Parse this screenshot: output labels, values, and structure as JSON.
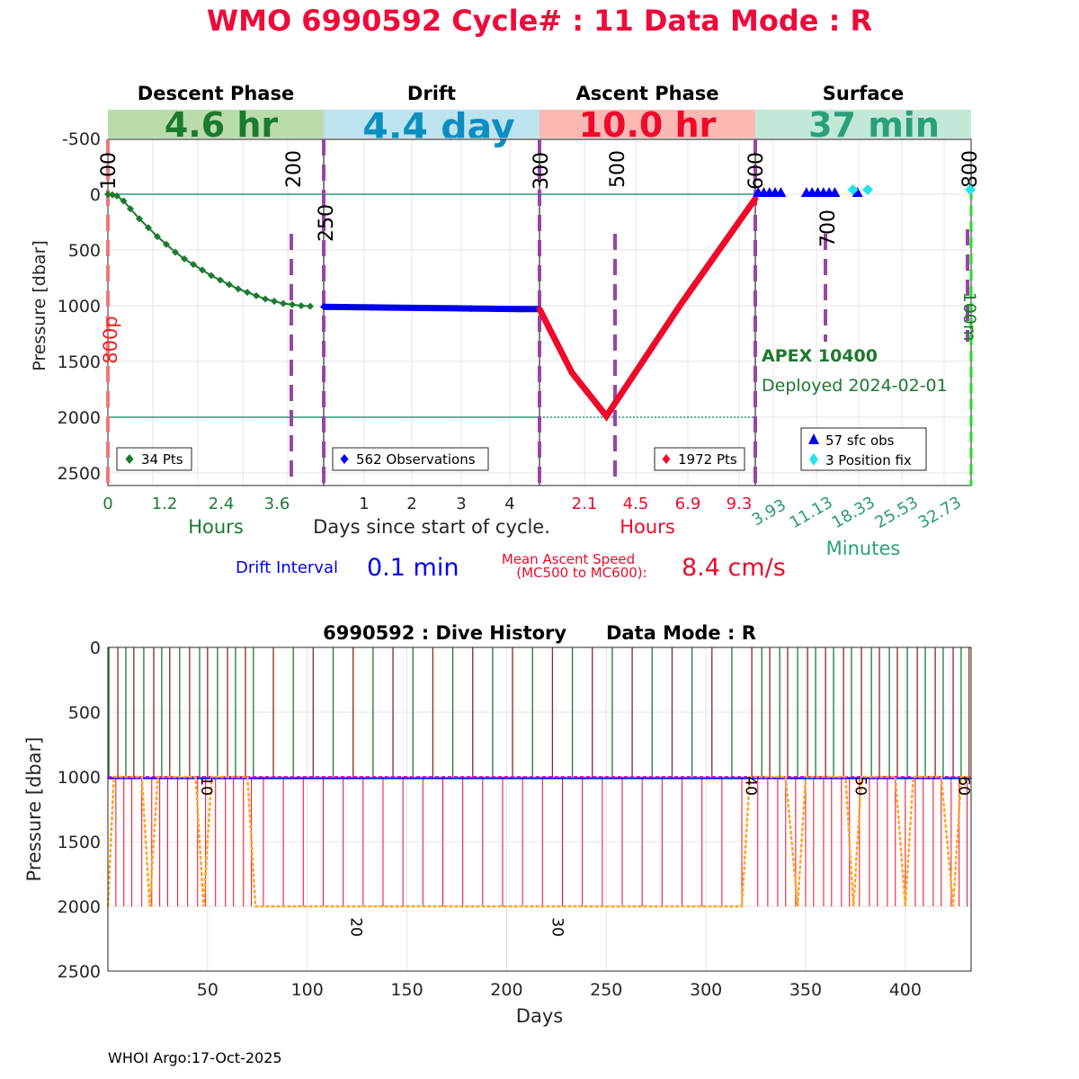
{
  "title": "WMO 6990592   Cycle# : 11   Data Mode : R",
  "footer": "WHOI Argo:17-Oct-2025",
  "colors": {
    "title": "#ee0a3a",
    "descent": "#1b7a2e",
    "drift": "#0000ee",
    "ascent": "#ee0a2a",
    "surface": "#2a9a78",
    "marker_line": "#9944aa",
    "ref_line": "#2a9a78",
    "profile_line": "#ffa520",
    "park_line": "#ee00ee",
    "descent_bar": "#b9dcaa",
    "drift_bar": "#bde3ef",
    "ascent_bar": "#fbb8b3",
    "surface_bar": "#c2e9d7",
    "drift_text": "#0c8ec0",
    "surface_text": "#2aa07a"
  },
  "phases": [
    {
      "name": "Descent Phase",
      "duration": "4.6 hr"
    },
    {
      "name": "Drift",
      "duration": "4.4 day"
    },
    {
      "name": "Ascent Phase",
      "duration": "10.0 hr"
    },
    {
      "name": "Surface",
      "duration": "37 min"
    }
  ],
  "top_chart": {
    "ylabel": "Pressure [dbar]",
    "y_ticks": [
      "-500",
      "0",
      "500",
      "1000",
      "1500",
      "2000",
      "2500"
    ],
    "descent_ticks": [
      "0",
      "1.2",
      "2.4",
      "3.6"
    ],
    "descent_unit": "Hours",
    "drift_ticks": [
      "1",
      "2",
      "3",
      "4"
    ],
    "drift_unit": "Days since start of cycle.",
    "ascent_ticks": [
      "2.1",
      "4.5",
      "6.9",
      "9.3"
    ],
    "ascent_unit": "Hours",
    "surface_ticks": [
      "3.93",
      "11.13",
      "18.33",
      "25.53",
      "32.73"
    ],
    "surface_unit": "Minutes",
    "marker_labels": [
      "100",
      "200",
      "250",
      "300",
      "500",
      "600",
      "700",
      "800"
    ],
    "label_800p": "800p",
    "label_100m": "100m",
    "legends": {
      "descent": "34 Pts",
      "drift": "562 Observations",
      "ascent": "1972 Pts",
      "surface_obs": "57 sfc obs",
      "surface_fix": "3 Position fix"
    },
    "float_model": "APEX 10400",
    "deployed": "Deployed 2024-02-01"
  },
  "chart_data": [
    {
      "type": "scatter",
      "title": "WMO 6990592   Cycle# : 11   Data Mode : R",
      "ylabel": "Pressure [dbar]",
      "ylim": [
        -500,
        2600
      ],
      "y_reversed": true,
      "series": [
        {
          "name": "34 Pts",
          "x_unit": "hours",
          "x": [
            0,
            0.1,
            0.2,
            0.35,
            0.5,
            0.7,
            0.9,
            1.1,
            1.3,
            1.5,
            1.7,
            1.9,
            2.1,
            2.3,
            2.5,
            2.7,
            2.9,
            3.1,
            3.3,
            3.5,
            3.7,
            3.9,
            4.1,
            4.3,
            4.5
          ],
          "y": [
            0,
            5,
            15,
            60,
            130,
            220,
            300,
            380,
            450,
            520,
            580,
            630,
            680,
            730,
            770,
            810,
            850,
            880,
            910,
            940,
            960,
            980,
            990,
            1000,
            1005
          ]
        },
        {
          "name": "562 Observations",
          "x_unit": "days",
          "x": [
            0,
            1,
            2,
            3,
            4,
            4.4
          ],
          "y": [
            1010,
            1015,
            1020,
            1025,
            1030,
            1030
          ]
        },
        {
          "name": "1972 Pts",
          "x_unit": "hours",
          "x": [
            0,
            1.5,
            3.1,
            6.5,
            10.0
          ],
          "y": [
            1030,
            1600,
            1990,
            1000,
            40
          ]
        },
        {
          "name": "57 sfc obs",
          "x_unit": "minutes",
          "x": [
            0.5,
            1.5,
            2.5,
            3.5,
            4.5,
            9,
            10,
            11,
            12,
            13,
            14,
            18
          ],
          "y": [
            0,
            0,
            0,
            0,
            0,
            0,
            0,
            0,
            0,
            0,
            0,
            0
          ]
        },
        {
          "name": "3 Position fix",
          "x_unit": "minutes",
          "x": [
            18.3,
            19.0,
            37.0
          ],
          "y": [
            -40,
            -40,
            -40
          ]
        }
      ],
      "reference_lines_dbar": [
        0,
        2000
      ],
      "annotations": {
        "drift_interval": "0.1 min",
        "mean_ascent_speed": "8.4 cm/s"
      }
    },
    {
      "type": "line",
      "title": "6990592 : Dive History      Data Mode : R",
      "xlabel": "Days",
      "ylabel": "Pressure [dbar]",
      "xlim": [
        0,
        433
      ],
      "ylim": [
        0,
        2500
      ],
      "y_reversed": true,
      "x_ticks": [
        50,
        100,
        150,
        200,
        250,
        300,
        350,
        400
      ],
      "y_ticks": [
        0,
        500,
        1000,
        1500,
        2000,
        2500
      ],
      "cycle_labels": [
        {
          "label": "10",
          "day": 47,
          "dbar": 1070
        },
        {
          "label": "20",
          "day": 122,
          "dbar": 2160
        },
        {
          "label": "30",
          "day": 223,
          "dbar": 2160
        },
        {
          "label": "40",
          "day": 320,
          "dbar": 1070
        },
        {
          "label": "50",
          "day": 375,
          "dbar": 1070
        },
        {
          "label": "60",
          "day": 427,
          "dbar": 1070
        }
      ],
      "profile_depth_series": {
        "name": "profile depth",
        "x": [
          0,
          3,
          10,
          17,
          21,
          25,
          30,
          38,
          44,
          48,
          52,
          58,
          66,
          70,
          74,
          80,
          100,
          150,
          200,
          250,
          300,
          318,
          322,
          326,
          334,
          340,
          346,
          350,
          358,
          366,
          370,
          374,
          378,
          388,
          395,
          400,
          404,
          408,
          418,
          424,
          428,
          433
        ],
        "y": [
          2000,
          1000,
          1000,
          1000,
          2000,
          1000,
          1000,
          1000,
          1000,
          2000,
          1000,
          1000,
          1000,
          1000,
          2000,
          2000,
          2000,
          2000,
          2000,
          2000,
          2000,
          2000,
          1000,
          1000,
          1000,
          1000,
          2000,
          1000,
          1000,
          1000,
          1000,
          2000,
          1000,
          1000,
          1000,
          2000,
          1000,
          1000,
          1000,
          2000,
          1000,
          1000
        ]
      },
      "park_pressure_series": {
        "name": "park pressure",
        "y": 1000
      },
      "descent_days": [
        0.5,
        5,
        9,
        13,
        18,
        23,
        27,
        31,
        36,
        41,
        46,
        50,
        55,
        60,
        64,
        69,
        73,
        83,
        93,
        103,
        113,
        123,
        133,
        143,
        153,
        163,
        173,
        183,
        193,
        203,
        213,
        223,
        233,
        243,
        253,
        263,
        273,
        283,
        293,
        303,
        313,
        323,
        328,
        332,
        337,
        341,
        346,
        351,
        355,
        360,
        364,
        369,
        373,
        378,
        383,
        387,
        392,
        396,
        401,
        406,
        410,
        415,
        419,
        424,
        428,
        432
      ],
      "ascent_days": [
        4,
        8,
        12,
        17,
        22,
        26,
        30,
        35,
        40,
        45,
        49,
        54,
        59,
        63,
        68,
        72,
        78,
        88,
        98,
        108,
        118,
        128,
        138,
        148,
        158,
        168,
        178,
        188,
        198,
        208,
        218,
        228,
        238,
        248,
        258,
        268,
        278,
        288,
        298,
        308,
        318,
        326,
        331,
        336,
        340,
        345,
        350,
        354,
        359,
        363,
        368,
        372,
        377,
        382,
        386,
        391,
        395,
        400,
        405,
        409,
        414,
        418,
        423,
        427,
        431
      ]
    }
  ],
  "annotations": {
    "drift_interval_label": "Drift Interval",
    "drift_interval_value": "0.1 min",
    "ascent_speed_label_1": "Mean Ascent Speed",
    "ascent_speed_label_2": "(MC500 to MC600):",
    "ascent_speed_value": "8.4 cm/s"
  },
  "bottom_chart": {
    "title": "6990592 : Dive History      Data Mode : R",
    "xlabel": "Days",
    "ylabel": "Pressure [dbar]",
    "y_ticks": [
      "0",
      "500",
      "1000",
      "1500",
      "2000",
      "2500"
    ],
    "x_ticks": [
      "50",
      "100",
      "150",
      "200",
      "250",
      "300",
      "350",
      "400"
    ]
  }
}
